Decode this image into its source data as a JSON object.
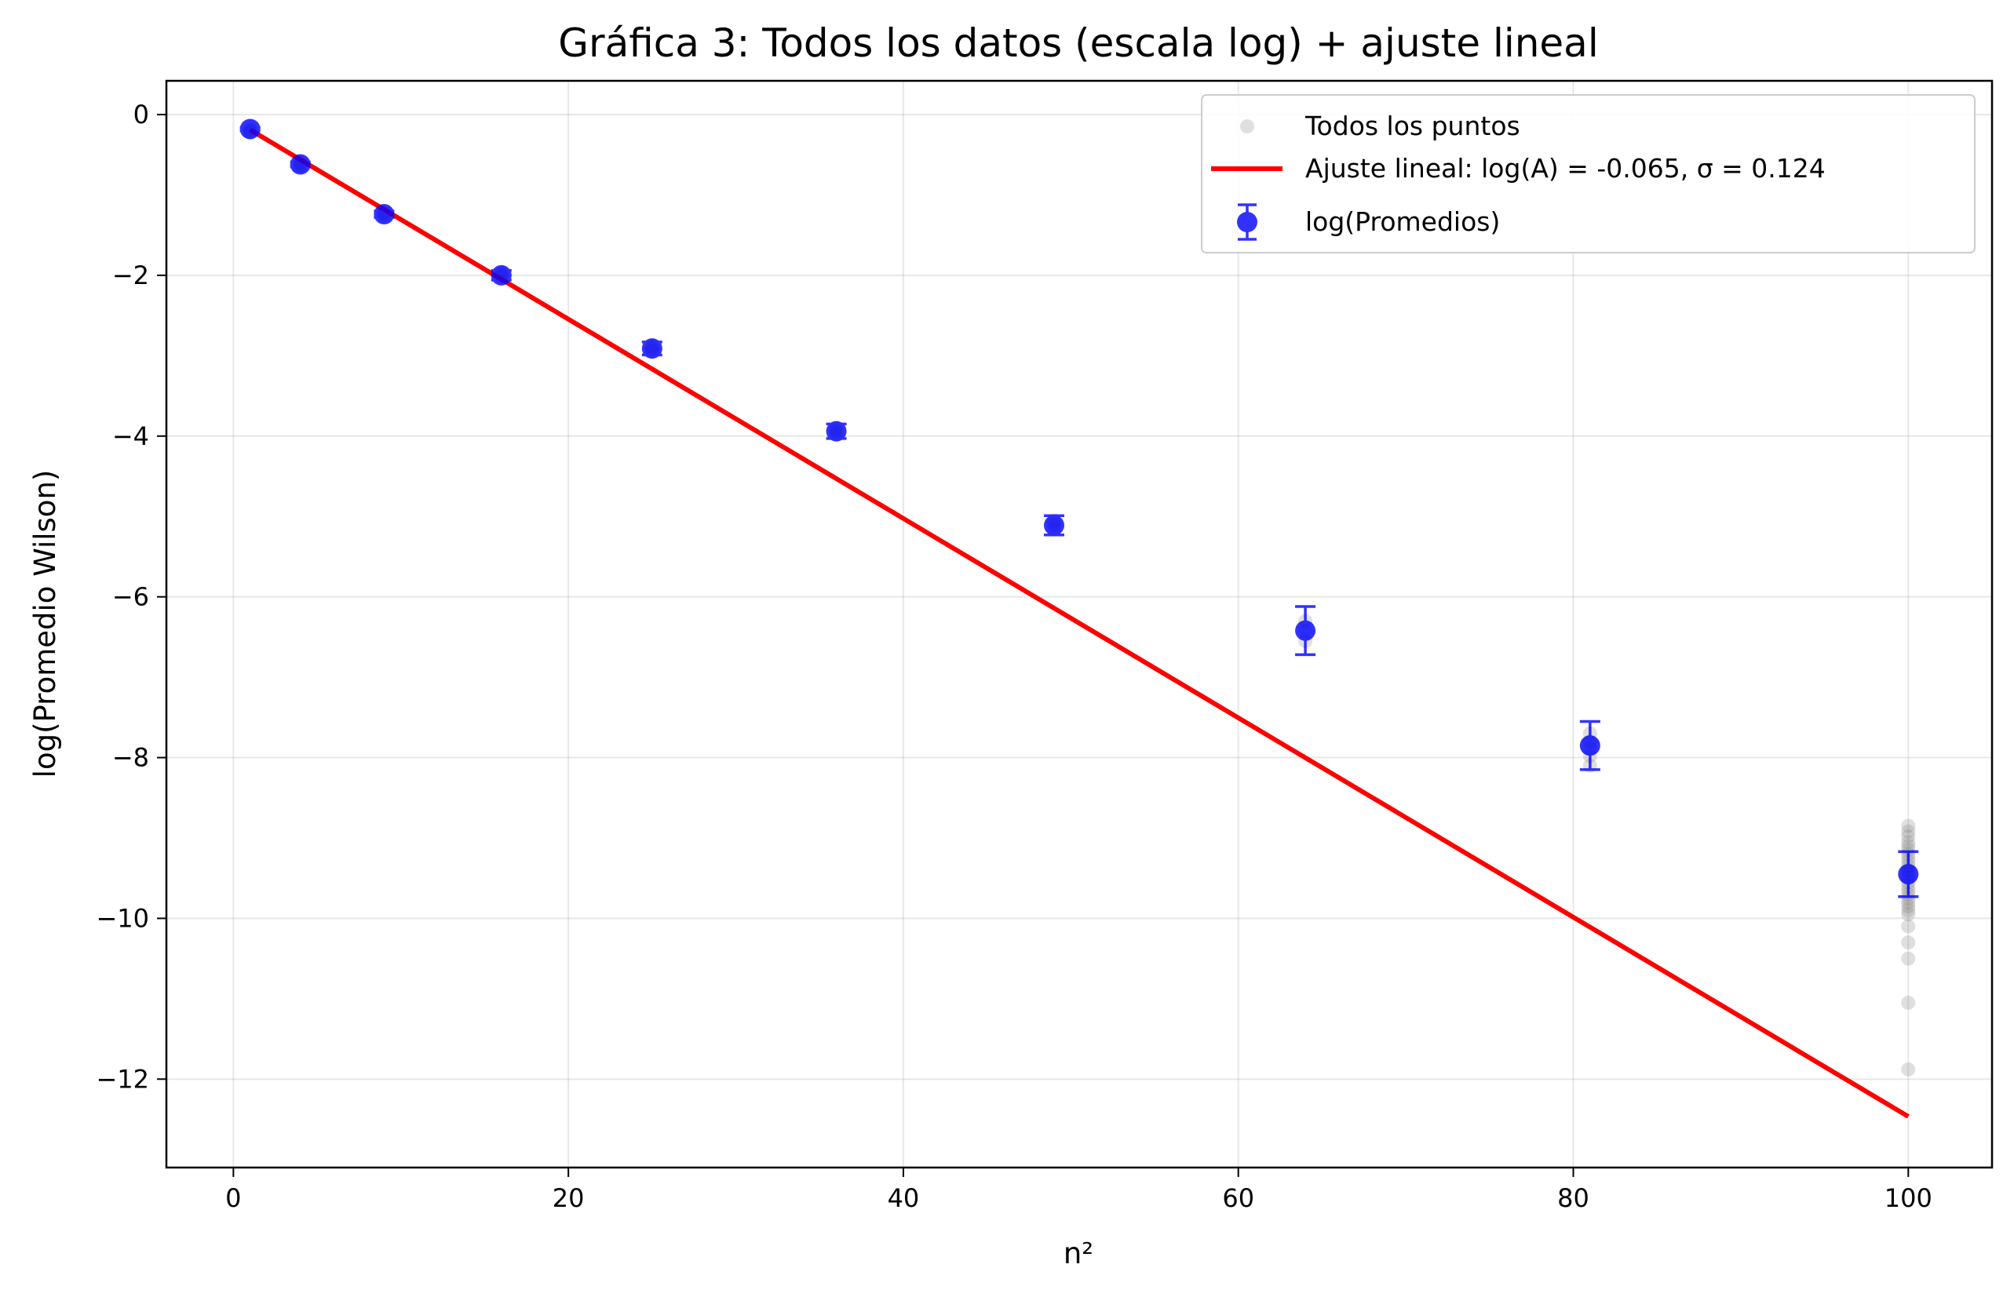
{
  "chart_data": {
    "type": "scatter",
    "title": "Gráfica 3: Todos los datos (escala log) + ajuste lineal",
    "xlabel": "n²",
    "ylabel": "log(Promedio Wilson)",
    "xlim": [
      -4,
      105
    ],
    "ylim": [
      -13.1,
      0.42
    ],
    "x_ticks": [
      0,
      20,
      40,
      60,
      80,
      100
    ],
    "y_ticks": [
      0,
      -2,
      -4,
      -6,
      -8,
      -10,
      -12
    ],
    "x_tick_labels": [
      "0",
      "20",
      "40",
      "60",
      "80",
      "100"
    ],
    "y_tick_labels": [
      "0",
      "−2",
      "−4",
      "−6",
      "−8",
      "−10",
      "−12"
    ],
    "grid": true,
    "legend_position": "top-right",
    "series": [
      {
        "name": "Todos los puntos",
        "kind": "scatter",
        "color": "#808080",
        "points": [
          {
            "x": 1,
            "y": -0.18
          },
          {
            "x": 1,
            "y": -0.2
          },
          {
            "x": 1,
            "y": -0.22
          },
          {
            "x": 4,
            "y": -0.6
          },
          {
            "x": 4,
            "y": -0.62
          },
          {
            "x": 4,
            "y": -0.64
          },
          {
            "x": 9,
            "y": -1.22
          },
          {
            "x": 9,
            "y": -1.24
          },
          {
            "x": 9,
            "y": -1.26
          },
          {
            "x": 16,
            "y": -1.98
          },
          {
            "x": 16,
            "y": -2.0
          },
          {
            "x": 16,
            "y": -2.02
          },
          {
            "x": 25,
            "y": -2.88
          },
          {
            "x": 25,
            "y": -2.91
          },
          {
            "x": 25,
            "y": -2.94
          },
          {
            "x": 36,
            "y": -3.9
          },
          {
            "x": 36,
            "y": -3.94
          },
          {
            "x": 36,
            "y": -3.98
          },
          {
            "x": 49,
            "y": -5.05
          },
          {
            "x": 49,
            "y": -5.1
          },
          {
            "x": 49,
            "y": -5.16
          },
          {
            "x": 64,
            "y": -6.3
          },
          {
            "x": 64,
            "y": -6.42
          },
          {
            "x": 64,
            "y": -6.55
          },
          {
            "x": 81,
            "y": -7.7
          },
          {
            "x": 81,
            "y": -7.8
          },
          {
            "x": 81,
            "y": -7.88
          },
          {
            "x": 81,
            "y": -7.98
          },
          {
            "x": 81,
            "y": -8.1
          },
          {
            "x": 100,
            "y": -8.85
          },
          {
            "x": 100,
            "y": -8.92
          },
          {
            "x": 100,
            "y": -8.98
          },
          {
            "x": 100,
            "y": -9.05
          },
          {
            "x": 100,
            "y": -9.1
          },
          {
            "x": 100,
            "y": -9.15
          },
          {
            "x": 100,
            "y": -9.2
          },
          {
            "x": 100,
            "y": -9.25
          },
          {
            "x": 100,
            "y": -9.3
          },
          {
            "x": 100,
            "y": -9.35
          },
          {
            "x": 100,
            "y": -9.4
          },
          {
            "x": 100,
            "y": -9.45
          },
          {
            "x": 100,
            "y": -9.5
          },
          {
            "x": 100,
            "y": -9.55
          },
          {
            "x": 100,
            "y": -9.6
          },
          {
            "x": 100,
            "y": -9.65
          },
          {
            "x": 100,
            "y": -9.7
          },
          {
            "x": 100,
            "y": -9.75
          },
          {
            "x": 100,
            "y": -9.8
          },
          {
            "x": 100,
            "y": -9.85
          },
          {
            "x": 100,
            "y": -9.9
          },
          {
            "x": 100,
            "y": -9.95
          },
          {
            "x": 100,
            "y": -10.1
          },
          {
            "x": 100,
            "y": -10.3
          },
          {
            "x": 100,
            "y": -10.5
          },
          {
            "x": 100,
            "y": -11.05
          },
          {
            "x": 100,
            "y": -11.88
          }
        ]
      },
      {
        "name": "Ajuste lineal: log(A) = -0.065, σ = 0.124",
        "kind": "line",
        "color": "#ff0000",
        "x": [
          1,
          100
        ],
        "y": [
          -0.189,
          -12.465
        ]
      },
      {
        "name": "log(Promedios)",
        "kind": "errorbar",
        "color": "#0000ff",
        "x": [
          1,
          4,
          9,
          16,
          25,
          36,
          49,
          64,
          81,
          100
        ],
        "y": [
          -0.18,
          -0.62,
          -1.24,
          -2.0,
          -2.91,
          -3.94,
          -5.11,
          -6.42,
          -7.85,
          -9.45
        ],
        "yerr": [
          0.02,
          0.03,
          0.04,
          0.06,
          0.08,
          0.09,
          0.12,
          0.3,
          0.3,
          0.28
        ]
      }
    ]
  }
}
